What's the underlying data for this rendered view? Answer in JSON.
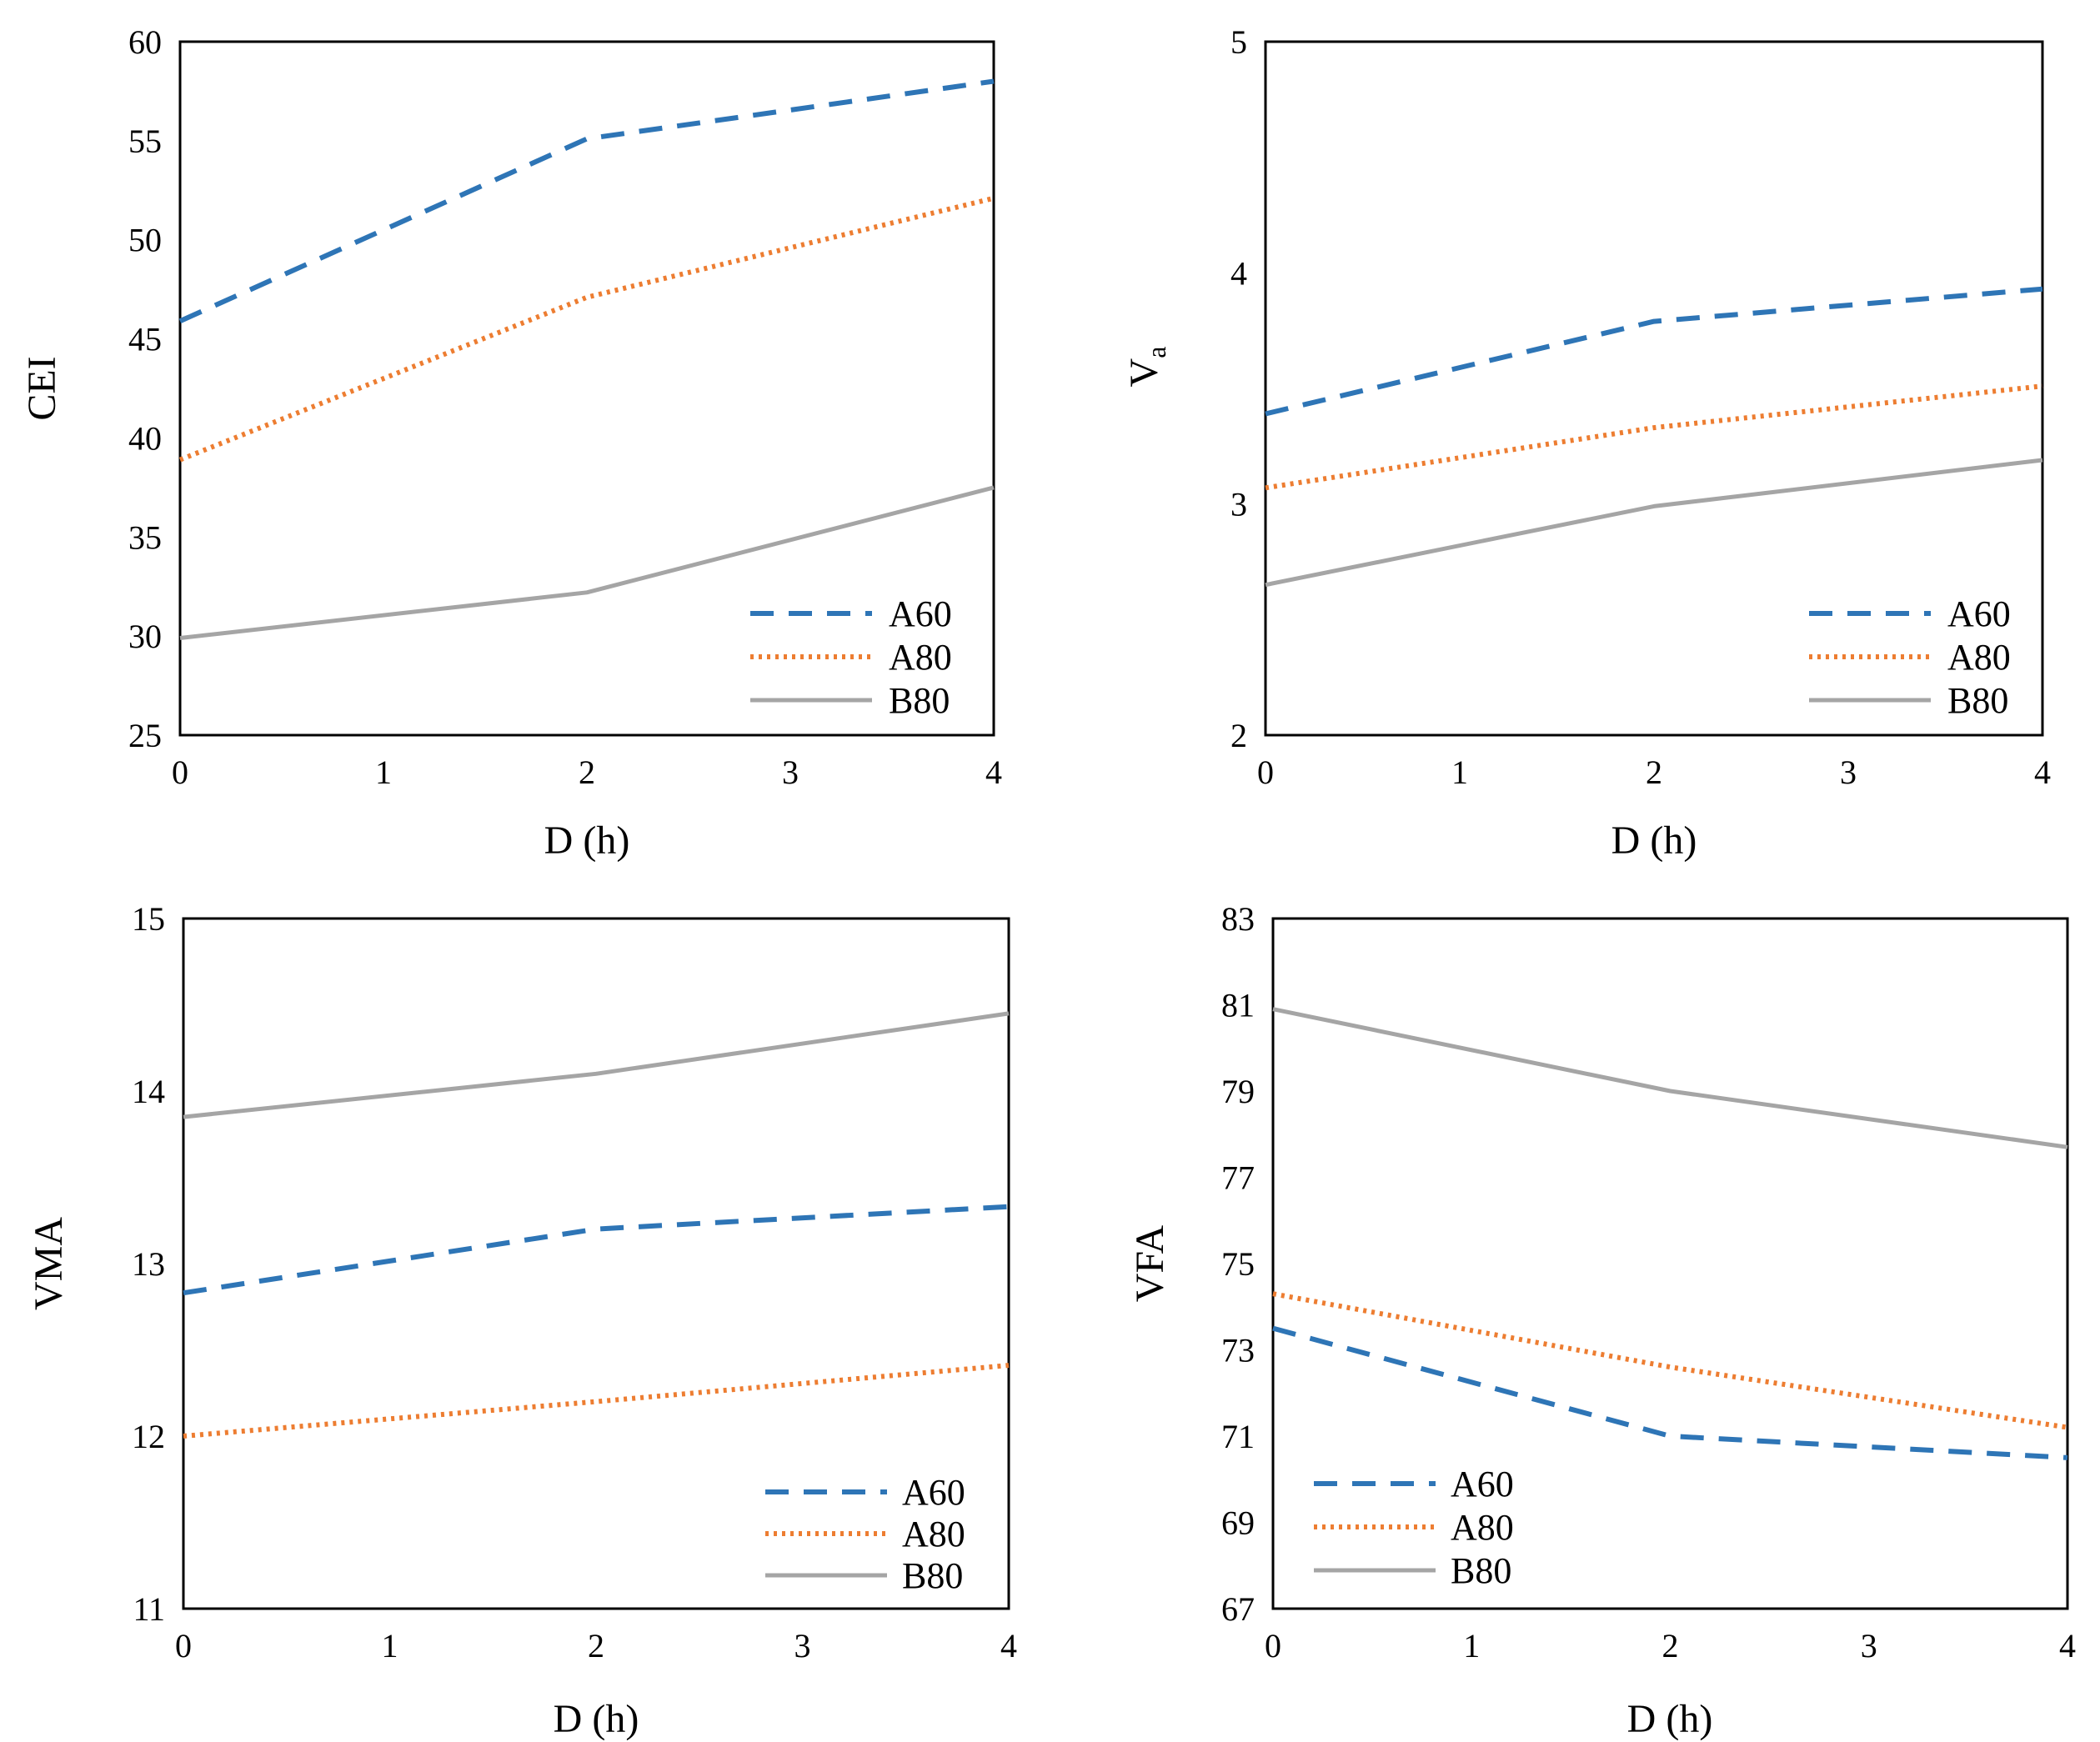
{
  "colors": {
    "A60": "#2e75b6",
    "A80": "#ed7d31",
    "B80": "#a5a5a5",
    "axis": "#000000",
    "background": "#ffffff"
  },
  "chart_data": [
    {
      "type": "line",
      "title": "",
      "xlabel": "D (h)",
      "ylabel": "CEI",
      "xlim": [
        0,
        4
      ],
      "ylim": [
        25,
        60
      ],
      "x_ticks": [
        "0",
        "1",
        "2",
        "3",
        "4"
      ],
      "y_ticks": [
        "25",
        "30",
        "35",
        "40",
        "45",
        "50",
        "55",
        "60"
      ],
      "x": [
        0,
        2,
        4
      ],
      "legend_position": "bottom-right",
      "series": [
        {
          "name": "A60",
          "style": "dashed",
          "values": [
            45.9,
            55.1,
            58.0
          ]
        },
        {
          "name": "A80",
          "style": "dotted",
          "values": [
            38.9,
            47.1,
            52.1
          ]
        },
        {
          "name": "B80",
          "style": "solid",
          "values": [
            29.9,
            32.2,
            37.5
          ]
        }
      ]
    },
    {
      "type": "line",
      "title": "",
      "xlabel": "D (h)",
      "ylabel": "V",
      "ylabel_subscript": "a",
      "xlim": [
        0,
        4
      ],
      "ylim": [
        2,
        5
      ],
      "x_ticks": [
        "0",
        "1",
        "2",
        "3",
        "4"
      ],
      "y_ticks": [
        "2",
        "3",
        "4",
        "5"
      ],
      "x": [
        0,
        2,
        4
      ],
      "legend_position": "bottom-right",
      "series": [
        {
          "name": "A60",
          "style": "dashed",
          "values": [
            3.39,
            3.79,
            3.93
          ]
        },
        {
          "name": "A80",
          "style": "dotted",
          "values": [
            3.07,
            3.33,
            3.51
          ]
        },
        {
          "name": "B80",
          "style": "solid",
          "values": [
            2.65,
            2.99,
            3.19
          ]
        }
      ]
    },
    {
      "type": "line",
      "title": "",
      "xlabel": "D (h)",
      "ylabel": "VMA",
      "xlim": [
        0,
        4
      ],
      "ylim": [
        11,
        15
      ],
      "x_ticks": [
        "0",
        "1",
        "2",
        "3",
        "4"
      ],
      "y_ticks": [
        "11",
        "12",
        "13",
        "14",
        "15"
      ],
      "x": [
        0,
        2,
        4
      ],
      "legend_position": "bottom-right",
      "series": [
        {
          "name": "A60",
          "style": "dashed",
          "values": [
            12.83,
            13.2,
            13.33
          ]
        },
        {
          "name": "A80",
          "style": "dotted",
          "values": [
            12.0,
            12.2,
            12.41
          ]
        },
        {
          "name": "B80",
          "style": "solid",
          "values": [
            13.85,
            14.1,
            14.45
          ]
        }
      ]
    },
    {
      "type": "line",
      "title": "",
      "xlabel": "D (h)",
      "ylabel": "VFA",
      "xlim": [
        0,
        4
      ],
      "ylim": [
        67,
        83
      ],
      "x_ticks": [
        "0",
        "1",
        "2",
        "3",
        "4"
      ],
      "y_ticks": [
        "67",
        "69",
        "71",
        "73",
        "75",
        "77",
        "79",
        "81",
        "83"
      ],
      "x": [
        0,
        2,
        4
      ],
      "legend_position": "bottom-left",
      "series": [
        {
          "name": "A60",
          "style": "dashed",
          "values": [
            73.5,
            71.0,
            70.5
          ]
        },
        {
          "name": "A80",
          "style": "dotted",
          "values": [
            74.3,
            72.6,
            71.2
          ]
        },
        {
          "name": "B80",
          "style": "solid",
          "values": [
            80.9,
            79.0,
            77.7
          ]
        }
      ]
    }
  ]
}
